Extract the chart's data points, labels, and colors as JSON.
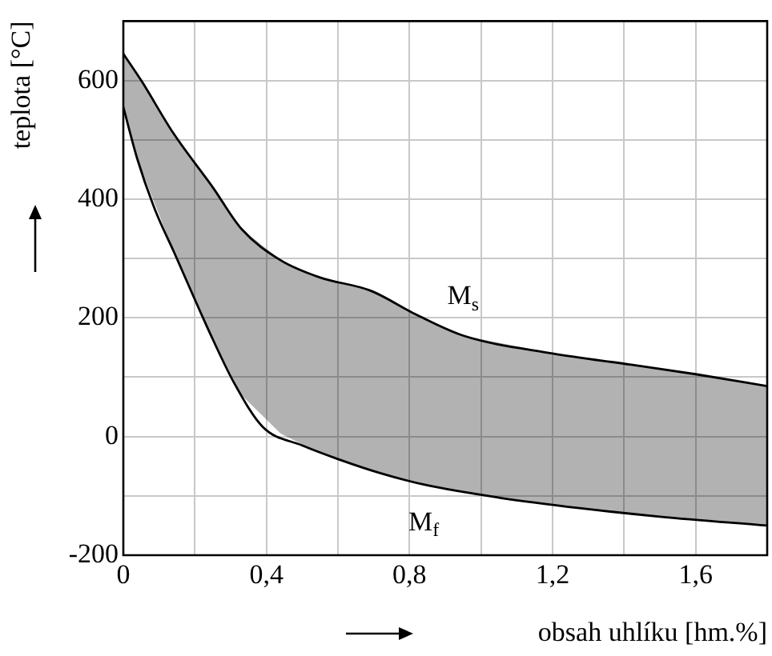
{
  "chart_data": {
    "type": "line",
    "xlabel": "obsah uhlíku [hm.%]",
    "ylabel": "teplota [°C]",
    "xlim": [
      0,
      1.8
    ],
    "ylim": [
      -200,
      700
    ],
    "xticks": [
      0,
      {
        "value": 0.2,
        "label": null
      },
      {
        "value": 0.4,
        "label": "0,4"
      },
      {
        "value": 0.6,
        "label": null
      },
      {
        "value": 0.8,
        "label": "0,8"
      },
      {
        "value": 1.0,
        "label": null
      },
      {
        "value": 1.2,
        "label": "1,2"
      },
      {
        "value": 1.4,
        "label": null
      },
      {
        "value": 1.6,
        "label": "1,6"
      }
    ],
    "yticks": [
      -200,
      {
        "value": -100,
        "label": null
      },
      0,
      {
        "value": 100,
        "label": null
      },
      200,
      {
        "value": 300,
        "label": null
      },
      400,
      {
        "value": 500,
        "label": null
      },
      600
    ],
    "grid": true,
    "legend": false,
    "marker": "none",
    "line_style": "solid",
    "series": [
      {
        "name": "M$_{s}$",
        "type": "line",
        "color": "#000000",
        "x": [
          0,
          0.05,
          0.14,
          0.25,
          0.33,
          0.44,
          0.55,
          0.69,
          0.82,
          0.95,
          1.2,
          1.42,
          1.6,
          1.8
        ],
        "values": [
          645,
          600,
          511,
          420,
          350,
          297,
          268,
          246,
          205,
          170,
          140,
          121,
          105,
          85
        ],
        "upper": [
          645,
          600,
          511,
          420,
          350,
          297,
          268,
          246,
          205,
          170,
          140,
          121,
          105,
          85
        ],
        "lower": [
          555,
          450,
          313,
          165,
          70,
          5,
          -28,
          -56,
          -78,
          -94,
          -116,
          -130,
          -140,
          -150
        ]
      },
      {
        "name": "M$_{f}$",
        "type": "line",
        "color": "#000000",
        "x": [
          0,
          0.04,
          0.09,
          0.14,
          0.24,
          0.31,
          0.39,
          0.5,
          0.6,
          0.72,
          0.84,
          1.05,
          1.28,
          1.5,
          1.8
        ],
        "values": [
          555,
          466,
          380,
          313,
          177,
          90,
          16,
          -15,
          -38,
          -62,
          -81,
          -103,
          -121,
          -135,
          -150
        ]
      }
    ]
  }
}
